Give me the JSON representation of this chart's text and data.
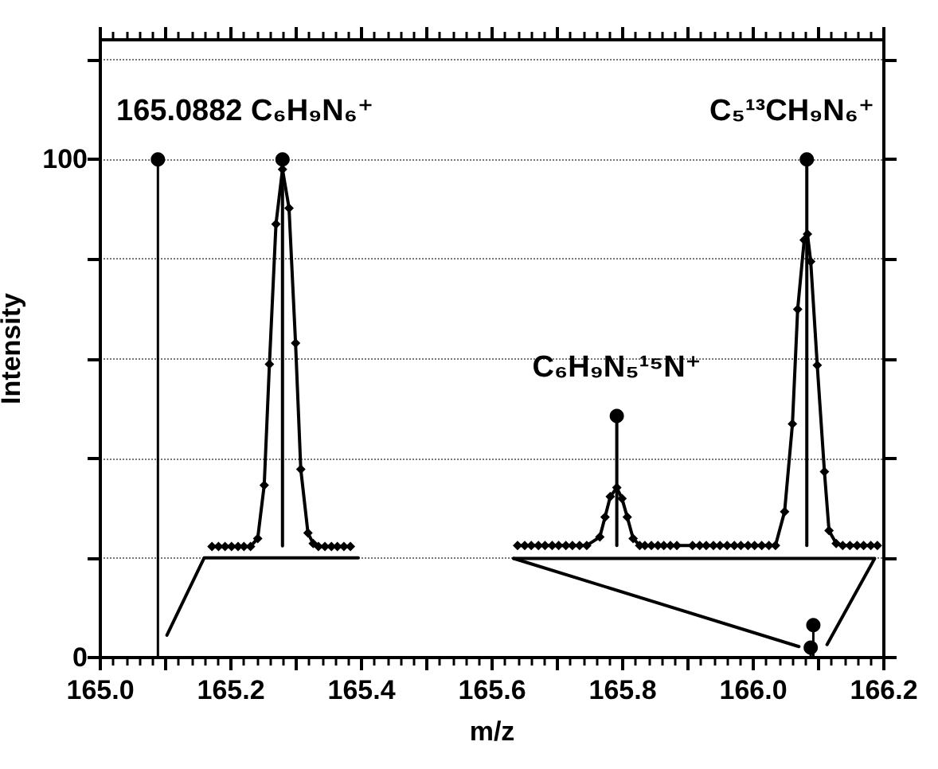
{
  "chart_data": {
    "type": "line",
    "xlabel": "m/z",
    "ylabel": "Intensity",
    "xlim": [
      165.0,
      166.2
    ],
    "xticks": [
      {
        "value": 165.0,
        "label": "165.0"
      },
      {
        "value": 165.1,
        "label": null
      },
      {
        "value": 165.2,
        "label": "165.2"
      },
      {
        "value": 165.3,
        "label": null
      },
      {
        "value": 165.4,
        "label": "165.4"
      },
      {
        "value": 165.5,
        "label": null
      },
      {
        "value": 165.6,
        "label": "165.6"
      },
      {
        "value": 165.7,
        "label": null
      },
      {
        "value": 165.8,
        "label": "165.8"
      },
      {
        "value": 165.9,
        "label": null
      },
      {
        "value": 166.0,
        "label": "166.0"
      },
      {
        "value": 166.1,
        "label": null
      },
      {
        "value": 166.2,
        "label": "166.2"
      }
    ],
    "ylim": [
      0,
      124
    ],
    "yticks": [
      0,
      {
        "value": 20,
        "label": null
      },
      {
        "value": 40,
        "label": null
      },
      {
        "value": 60,
        "label": null
      },
      {
        "value": 80,
        "label": null
      },
      100,
      {
        "value": 120,
        "label": null
      }
    ],
    "grid": "y",
    "line_style": "solid",
    "series": [
      {
        "type": "lollipop",
        "color": "#000000",
        "marker": "circle",
        "x": [
          165.0882,
          166.088,
          166.092
        ],
        "values": [
          100,
          2,
          6.5
        ]
      },
      {
        "color": "#000000",
        "marker": "none",
        "x": [
          165.279,
          165.279
        ],
        "values": [
          22.4,
          100
        ]
      },
      {
        "color": "#000000",
        "marker": "none",
        "x": [
          165.791,
          165.791
        ],
        "values": [
          22.5,
          48.5
        ]
      },
      {
        "color": "#000000",
        "marker": "none",
        "x": [
          166.082,
          166.082
        ],
        "values": [
          22.5,
          100
        ]
      },
      {
        "type": "scatter",
        "color": "#000000",
        "marker": "circle",
        "x": [
          165.279,
          165.791,
          166.082
        ],
        "values": [
          100,
          48.5,
          100
        ]
      },
      {
        "color": "#000000",
        "marker": "diamond",
        "x": [
          165.171,
          165.181,
          165.191,
          165.201,
          165.211,
          165.22,
          165.23,
          165.241,
          165.251,
          165.259,
          165.269,
          165.279,
          165.289,
          165.299,
          165.307,
          165.318,
          165.326,
          165.334,
          165.344,
          165.354,
          165.363,
          165.373,
          165.383
        ],
        "values": [
          22.3,
          22.3,
          22.3,
          22.3,
          22.3,
          22.3,
          22.3,
          23.9,
          34.6,
          58.9,
          87,
          98,
          90.2,
          63.1,
          37.8,
          25,
          22.9,
          22.3,
          22.3,
          22.3,
          22.3,
          22.3,
          22.3
        ]
      },
      {
        "color": "#000000",
        "marker": "diamond",
        "x": [
          165.639,
          165.65,
          165.66,
          165.671,
          165.681,
          165.692,
          165.702,
          165.713,
          165.723,
          165.734,
          165.745,
          165.765,
          165.773,
          165.781,
          165.791,
          165.799,
          165.807,
          165.816,
          165.826,
          165.834,
          165.844,
          165.854,
          165.863,
          165.873,
          165.883,
          165.907,
          165.918,
          165.928,
          165.939,
          165.949,
          165.96,
          165.971,
          165.981,
          165.992,
          166.002,
          166.013,
          166.024,
          166.034,
          166.048,
          166.06,
          166.068,
          166.078,
          166.083,
          166.088,
          166.098,
          166.109,
          166.116,
          166.127,
          166.137,
          166.148,
          166.159,
          166.169,
          166.18,
          166.19
        ],
        "values": [
          22.5,
          22.5,
          22.5,
          22.5,
          22.5,
          22.5,
          22.5,
          22.5,
          22.5,
          22.5,
          22.5,
          24.2,
          28.2,
          32.3,
          34.1,
          31.9,
          28.2,
          23.9,
          22.5,
          22.5,
          22.5,
          22.5,
          22.5,
          22.5,
          22.5,
          22.5,
          22.5,
          22.5,
          22.5,
          22.5,
          22.5,
          22.5,
          22.5,
          22.5,
          22.5,
          22.5,
          22.5,
          22.5,
          29.3,
          46.9,
          69.9,
          83.8,
          85,
          79.5,
          58.7,
          37.3,
          25.5,
          22.9,
          22.5,
          22.5,
          22.5,
          22.5,
          22.5,
          22.5
        ]
      },
      {
        "color": "#000000",
        "marker": "none",
        "x": [
          165.102,
          165.159,
          165.395
        ],
        "values": [
          4.5,
          20,
          20
        ]
      },
      {
        "color": "#000000",
        "marker": "none",
        "x": [
          165.633,
          166.186,
          166.113
        ],
        "values": [
          19.9,
          19.9,
          2.6
        ]
      },
      {
        "color": "#000000",
        "marker": "none",
        "x": [
          165.633,
          166.07
        ],
        "values": [
          19.9,
          2.2
        ]
      }
    ],
    "annotations": [
      {
        "text": "165.0882 C₆H₉N₆⁺",
        "x": 165.0882,
        "y": 100
      },
      {
        "text": "C₅¹³CH₉N₆⁺",
        "x": 166.082,
        "y": 100
      },
      {
        "text": "C₆H₉N₅¹⁵N⁺",
        "x": 165.791,
        "y": 48.5
      }
    ]
  }
}
